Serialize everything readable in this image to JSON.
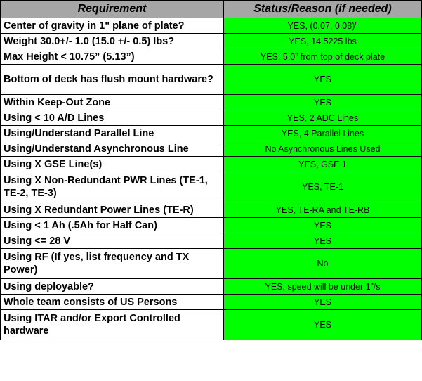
{
  "table": {
    "columns": [
      "Requirement",
      "Status/Reason (if needed)"
    ],
    "status_color": "#00ff00",
    "header_color": "#a6a6a6",
    "rows": [
      {
        "requirement": "Center of gravity in 1\" plane of plate?",
        "status": "YES, (0.07, 0.08)”"
      },
      {
        "requirement": "Weight 30.0+/- 1.0 (15.0 +/- 0.5) lbs?",
        "status": "YES, 14.5225  lbs"
      },
      {
        "requirement": "Max Height < 10.75” (5.13”)",
        "status": "YES, 5.0” from top of deck plate"
      },
      {
        "requirement": "Bottom of deck has flush mount hardware?",
        "status": "YES"
      },
      {
        "requirement": "Within Keep-Out Zone",
        "status": "YES"
      },
      {
        "requirement": "Using < 10 A/D Lines",
        "status": "YES, 2 ADC Lines"
      },
      {
        "requirement": "Using/Understand Parallel Line",
        "status": "YES, 4 Parallel Lines"
      },
      {
        "requirement": "Using/Understand Asynchronous Line",
        "status": "No Asynchronous Lines Used"
      },
      {
        "requirement": "Using X GSE Line(s)",
        "status": "YES, GSE 1"
      },
      {
        "requirement": "Using X Non-Redundant PWR Lines (TE-1, TE-2, TE-3)",
        "status": "YES, TE-1"
      },
      {
        "requirement": "Using X Redundant Power Lines (TE-R)",
        "status": "YES, TE-RA and TE-RB"
      },
      {
        "requirement": "Using < 1 Ah (.5Ah for Half Can)",
        "status": "YES"
      },
      {
        "requirement": "Using <= 28 V",
        "status": "YES"
      },
      {
        "requirement": "Using RF (If yes, list frequency and TX Power)",
        "status": "No"
      },
      {
        "requirement": "Using deployable?",
        "status": "YES, speed will be under 1”/s"
      },
      {
        "requirement": "Whole team consists of US Persons",
        "status": "YES"
      },
      {
        "requirement": "Using ITAR and/or Export Controlled hardware",
        "status": "YES"
      }
    ]
  }
}
